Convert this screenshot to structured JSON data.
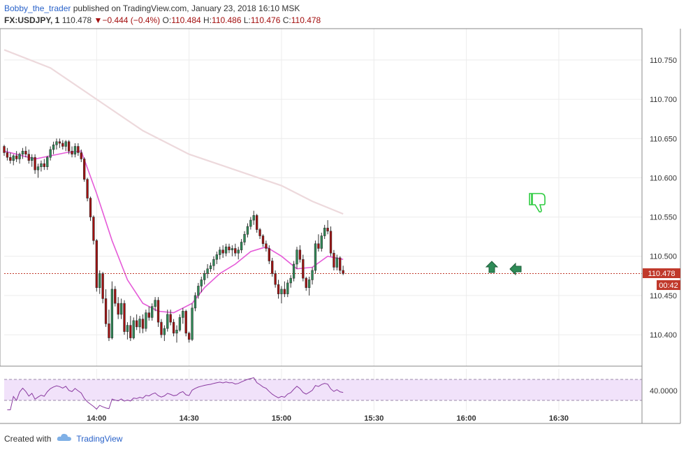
{
  "header": {
    "author": "Bobby_the_trader",
    "published_text": "published on TradingView.com, January 23, 2018 16:10 MSK",
    "symbol": "FX:USDJPY, 1",
    "last": "110.478",
    "change": "−0.444 (−0.4%)",
    "open_label": "O:",
    "open": "110.484",
    "high_label": "H:",
    "high": "110.486",
    "low_label": "L:",
    "low": "110.476",
    "close_label": "C:",
    "close": "110.478"
  },
  "footer": {
    "created_with": "Created with",
    "brand": "TradingView"
  },
  "colors": {
    "up": "#2e8b57",
    "down": "#a30f0f",
    "ma_fast": "#e55bd8",
    "ma_slow": "#edd9dc",
    "rsi": "#8a3aa0",
    "rsi_band": "#f1e2fa",
    "grid": "#ececec",
    "price_line": "#c0392b"
  },
  "chart_data": {
    "type": "candlestick",
    "interval_minutes": 1,
    "price_axis": {
      "ticks": [
        "110.750",
        "110.700",
        "110.650",
        "110.600",
        "110.550",
        "110.500",
        "110.450",
        "110.400"
      ],
      "range": [
        110.36,
        110.79
      ]
    },
    "time_axis": {
      "ticks": [
        "14:00",
        "14:30",
        "15:00",
        "15:30",
        "16:00",
        "16:30"
      ],
      "range": [
        "13:30",
        "16:57"
      ]
    },
    "last_price_label": "110.478",
    "countdown_label": "00:42",
    "ohlc": [
      [
        "13:30",
        110.64,
        110.642,
        110.628,
        110.632
      ],
      [
        "13:31",
        110.632,
        110.638,
        110.622,
        110.626
      ],
      [
        "13:32",
        110.626,
        110.632,
        110.618,
        110.622
      ],
      [
        "13:33",
        110.622,
        110.63,
        110.616,
        110.628
      ],
      [
        "13:34",
        110.628,
        110.634,
        110.62,
        110.624
      ],
      [
        "13:35",
        110.624,
        110.632,
        110.618,
        110.63
      ],
      [
        "13:36",
        110.63,
        110.638,
        110.624,
        110.634
      ],
      [
        "13:37",
        110.634,
        110.64,
        110.626,
        110.63
      ],
      [
        "13:38",
        110.63,
        110.636,
        110.618,
        110.622
      ],
      [
        "13:39",
        110.622,
        110.63,
        110.614,
        110.626
      ],
      [
        "13:40",
        110.626,
        110.63,
        110.605,
        110.61
      ],
      [
        "13:41",
        110.61,
        110.618,
        110.6,
        110.614
      ],
      [
        "13:42",
        110.614,
        110.622,
        110.608,
        110.618
      ],
      [
        "13:43",
        110.618,
        110.624,
        110.61,
        110.614
      ],
      [
        "13:44",
        110.614,
        110.628,
        110.61,
        110.626
      ],
      [
        "13:45",
        110.626,
        110.64,
        110.622,
        110.636
      ],
      [
        "13:46",
        110.636,
        110.646,
        110.63,
        110.642
      ],
      [
        "13:47",
        110.642,
        110.65,
        110.636,
        110.646
      ],
      [
        "13:48",
        110.646,
        110.65,
        110.638,
        110.644
      ],
      [
        "13:49",
        110.644,
        110.648,
        110.636,
        110.64
      ],
      [
        "13:50",
        110.64,
        110.648,
        110.634,
        110.646
      ],
      [
        "13:51",
        110.646,
        110.648,
        110.63,
        110.634
      ],
      [
        "13:52",
        110.634,
        110.64,
        110.626,
        110.63
      ],
      [
        "13:53",
        110.63,
        110.644,
        110.626,
        110.64
      ],
      [
        "13:54",
        110.64,
        110.644,
        110.628,
        110.632
      ],
      [
        "13:55",
        110.632,
        110.636,
        110.62,
        110.624
      ],
      [
        "13:56",
        110.624,
        110.626,
        110.595,
        110.598
      ],
      [
        "13:57",
        110.598,
        110.6,
        110.57,
        110.574
      ],
      [
        "13:58",
        110.574,
        110.576,
        110.545,
        110.55
      ],
      [
        "13:59",
        110.55,
        110.552,
        110.515,
        110.52
      ],
      [
        "14:00",
        110.52,
        110.522,
        110.455,
        110.46
      ],
      [
        "14:01",
        110.46,
        110.482,
        110.452,
        110.478
      ],
      [
        "14:02",
        110.478,
        110.48,
        110.44,
        110.446
      ],
      [
        "14:03",
        110.446,
        110.458,
        110.41,
        110.414
      ],
      [
        "14:04",
        110.414,
        110.432,
        110.392,
        110.396
      ],
      [
        "14:05",
        110.396,
        110.468,
        110.394,
        110.458
      ],
      [
        "14:06",
        110.458,
        110.462,
        110.436,
        110.44
      ],
      [
        "14:07",
        110.44,
        110.448,
        110.42,
        110.426
      ],
      [
        "14:08",
        110.426,
        110.446,
        110.42,
        110.44
      ],
      [
        "14:09",
        110.44,
        110.444,
        110.4,
        110.404
      ],
      [
        "14:10",
        110.404,
        110.416,
        110.394,
        110.412
      ],
      [
        "14:11",
        110.412,
        110.424,
        110.392,
        110.396
      ],
      [
        "14:12",
        110.396,
        110.422,
        110.394,
        110.418
      ],
      [
        "14:13",
        110.418,
        110.426,
        110.406,
        110.41
      ],
      [
        "14:14",
        110.41,
        110.424,
        110.402,
        110.42
      ],
      [
        "14:15",
        110.42,
        110.426,
        110.402,
        110.408
      ],
      [
        "14:16",
        110.408,
        110.432,
        110.404,
        110.428
      ],
      [
        "14:17",
        110.428,
        110.436,
        110.418,
        110.422
      ],
      [
        "14:18",
        110.422,
        110.44,
        110.418,
        110.436
      ],
      [
        "14:19",
        110.436,
        110.448,
        110.43,
        110.444
      ],
      [
        "14:20",
        110.444,
        110.448,
        110.41,
        110.416
      ],
      [
        "14:21",
        110.416,
        110.42,
        110.396,
        110.4
      ],
      [
        "14:22",
        110.4,
        110.412,
        110.392,
        110.408
      ],
      [
        "14:23",
        110.408,
        110.432,
        110.404,
        110.426
      ],
      [
        "14:24",
        110.426,
        110.432,
        110.412,
        110.416
      ],
      [
        "14:25",
        110.416,
        110.42,
        110.398,
        110.402
      ],
      [
        "14:26",
        110.402,
        110.412,
        110.39,
        110.406
      ],
      [
        "14:27",
        110.406,
        110.426,
        110.404,
        110.422
      ],
      [
        "14:28",
        110.422,
        110.434,
        110.414,
        110.43
      ],
      [
        "14:29",
        110.43,
        110.432,
        110.398,
        110.402
      ],
      [
        "14:30",
        110.402,
        110.404,
        110.39,
        110.394
      ],
      [
        "14:31",
        110.394,
        110.44,
        110.392,
        110.434
      ],
      [
        "14:32",
        110.434,
        110.454,
        110.43,
        110.45
      ],
      [
        "14:33",
        110.45,
        110.466,
        110.446,
        110.462
      ],
      [
        "14:34",
        110.462,
        110.474,
        110.454,
        110.47
      ],
      [
        "14:35",
        110.47,
        110.482,
        110.464,
        110.478
      ],
      [
        "14:36",
        110.478,
        110.49,
        110.472,
        110.484
      ],
      [
        "14:37",
        110.484,
        110.492,
        110.48,
        110.488
      ],
      [
        "14:38",
        110.488,
        110.5,
        110.482,
        110.496
      ],
      [
        "14:39",
        110.496,
        110.506,
        110.49,
        110.502
      ],
      [
        "14:40",
        110.502,
        110.512,
        110.496,
        110.508
      ],
      [
        "14:41",
        110.508,
        110.514,
        110.498,
        110.504
      ],
      [
        "14:42",
        110.504,
        110.516,
        110.5,
        110.512
      ],
      [
        "14:43",
        110.512,
        110.516,
        110.504,
        110.508
      ],
      [
        "14:44",
        110.508,
        110.514,
        110.5,
        110.51
      ],
      [
        "14:45",
        110.51,
        110.516,
        110.5,
        110.504
      ],
      [
        "14:46",
        110.504,
        110.512,
        110.496,
        110.508
      ],
      [
        "14:47",
        110.508,
        110.522,
        110.504,
        110.518
      ],
      [
        "14:48",
        110.518,
        110.532,
        110.514,
        110.528
      ],
      [
        "14:49",
        110.528,
        110.542,
        110.524,
        110.538
      ],
      [
        "14:50",
        110.538,
        110.55,
        110.534,
        110.546
      ],
      [
        "14:51",
        110.546,
        110.558,
        110.54,
        110.552
      ],
      [
        "14:52",
        110.552,
        110.554,
        110.53,
        110.534
      ],
      [
        "14:53",
        110.534,
        110.536,
        110.522,
        110.526
      ],
      [
        "14:54",
        110.526,
        110.528,
        110.512,
        110.516
      ],
      [
        "14:55",
        110.516,
        110.52,
        110.506,
        110.51
      ],
      [
        "14:56",
        110.51,
        110.514,
        110.49,
        110.494
      ],
      [
        "14:57",
        110.494,
        110.498,
        110.474,
        110.478
      ],
      [
        "14:58",
        110.478,
        110.482,
        110.46,
        110.464
      ],
      [
        "14:59",
        110.464,
        110.47,
        110.446,
        110.452
      ],
      [
        "15:00",
        110.452,
        110.462,
        110.44,
        110.458
      ],
      [
        "15:01",
        110.458,
        110.468,
        110.448,
        110.452
      ],
      [
        "15:02",
        110.452,
        110.47,
        110.448,
        110.466
      ],
      [
        "15:03",
        110.466,
        110.476,
        110.46,
        110.472
      ],
      [
        "15:04",
        110.472,
        110.494,
        110.468,
        110.49
      ],
      [
        "15:05",
        110.49,
        110.512,
        110.484,
        110.508
      ],
      [
        "15:06",
        110.508,
        110.514,
        110.492,
        110.496
      ],
      [
        "15:07",
        110.496,
        110.502,
        110.468,
        110.472
      ],
      [
        "15:08",
        110.472,
        110.474,
        110.456,
        110.46
      ],
      [
        "15:09",
        110.46,
        110.474,
        110.45,
        110.47
      ],
      [
        "15:10",
        110.47,
        110.486,
        110.464,
        110.482
      ],
      [
        "15:11",
        110.482,
        110.52,
        110.478,
        110.516
      ],
      [
        "15:12",
        110.516,
        110.528,
        110.506,
        110.51
      ],
      [
        "15:13",
        110.51,
        110.53,
        110.506,
        110.526
      ],
      [
        "15:14",
        110.526,
        110.54,
        110.522,
        110.536
      ],
      [
        "15:15",
        110.536,
        110.546,
        110.528,
        110.532
      ],
      [
        "15:16",
        110.532,
        110.538,
        110.5,
        110.504
      ],
      [
        "15:17",
        110.504,
        110.508,
        110.482,
        110.486
      ],
      [
        "15:18",
        110.486,
        110.502,
        110.482,
        110.498
      ],
      [
        "15:19",
        110.498,
        110.5,
        110.478,
        110.482
      ],
      [
        "15:20",
        110.482,
        110.488,
        110.476,
        110.478
      ]
    ],
    "ma_fast": [
      [
        "13:30",
        110.634
      ],
      [
        "13:40",
        110.624
      ],
      [
        "13:50",
        110.632
      ],
      [
        "13:55",
        110.634
      ],
      [
        "14:00",
        110.58
      ],
      [
        "14:05",
        110.52
      ],
      [
        "14:10",
        110.47
      ],
      [
        "14:15",
        110.44
      ],
      [
        "14:20",
        110.43
      ],
      [
        "14:25",
        110.428
      ],
      [
        "14:31",
        110.44
      ],
      [
        "14:35",
        110.46
      ],
      [
        "14:40",
        110.478
      ],
      [
        "14:45",
        110.49
      ],
      [
        "14:50",
        110.506
      ],
      [
        "14:55",
        110.512
      ],
      [
        "15:00",
        110.5
      ],
      [
        "15:05",
        110.484
      ],
      [
        "15:10",
        110.486
      ],
      [
        "15:15",
        110.5
      ],
      [
        "15:20",
        110.496
      ]
    ],
    "ma_slow": [
      [
        "13:30",
        110.763
      ],
      [
        "13:45",
        110.74
      ],
      [
        "14:00",
        110.7
      ],
      [
        "14:15",
        110.66
      ],
      [
        "14:30",
        110.63
      ],
      [
        "14:45",
        110.61
      ],
      [
        "15:00",
        110.59
      ],
      [
        "15:10",
        110.57
      ],
      [
        "15:20",
        110.554
      ]
    ],
    "rsi": {
      "level_label": "40.0000",
      "upper": 70,
      "lower": 30
    },
    "annotations": [
      "thumbs-down",
      "arrow-up",
      "arrow-left"
    ]
  }
}
